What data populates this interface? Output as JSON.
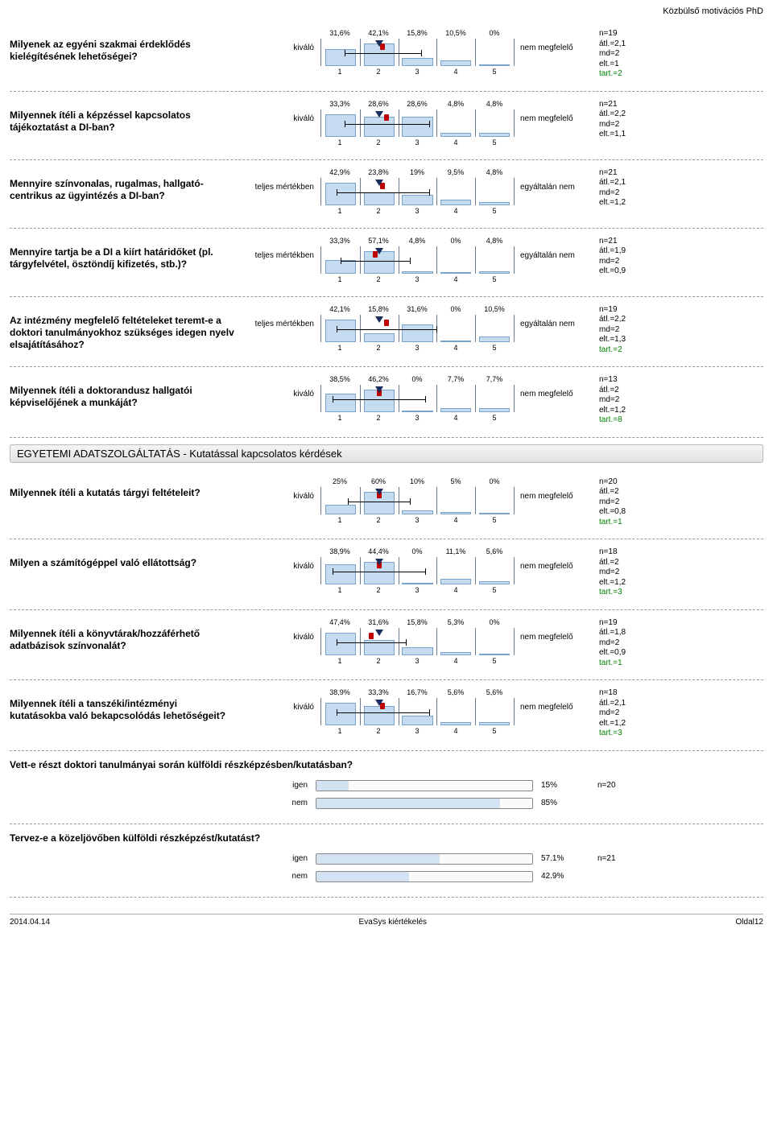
{
  "page_title_right": "Közbülső motivációs PhD",
  "section_heading": "EGYETEMI ADATSZOLGÁLTATÁS - Kutatással kapcsolatos kérdések",
  "axis_labels": [
    "1",
    "2",
    "3",
    "4",
    "5"
  ],
  "chart_colors": {
    "bar_fill": "#c5dbef",
    "bar_border": "#7aa3c9",
    "grid": "#6b7b8c",
    "mean": "#c00000",
    "median": "#1a2d5c",
    "tart": "#008000"
  },
  "questions": [
    {
      "text": "Milyenek az egyéni szakmai érdeklődés kielégítésének lehetőségei?",
      "left": "kiváló",
      "right": "nem megfelelő",
      "percents": [
        "31,6%",
        "42,1%",
        "15,8%",
        "10,5%",
        "0%"
      ],
      "values": [
        31.6,
        42.1,
        15.8,
        10.5,
        0
      ],
      "mean": 2.1,
      "median": 2,
      "elt": 1,
      "n": 19,
      "tart": 2,
      "stats": [
        "n=19",
        "átl.=2,1",
        "md=2",
        "elt.=1",
        "tart.=2"
      ]
    },
    {
      "text": "Milyennek ítéli a képzéssel kapcsolatos tájékoztatást a DI-ban?",
      "left": "kiváló",
      "right": "nem megfelelő",
      "percents": [
        "33,3%",
        "28,6%",
        "28,6%",
        "4,8%",
        "4,8%"
      ],
      "values": [
        33.3,
        28.6,
        28.6,
        4.8,
        4.8
      ],
      "mean": 2.2,
      "median": 2,
      "elt": 1.1,
      "n": 21,
      "stats": [
        "n=21",
        "átl.=2,2",
        "md=2",
        "elt.=1,1"
      ]
    },
    {
      "text": "Mennyire színvonalas, rugalmas, hallgató-centrikus az ügyintézés a DI-ban?",
      "left": "teljes mértékben",
      "right": "egyáltalán nem",
      "percents": [
        "42,9%",
        "23,8%",
        "19%",
        "9,5%",
        "4,8%"
      ],
      "values": [
        42.9,
        23.8,
        19,
        9.5,
        4.8
      ],
      "mean": 2.1,
      "median": 2,
      "elt": 1.2,
      "n": 21,
      "stats": [
        "n=21",
        "átl.=2,1",
        "md=2",
        "elt.=1,2"
      ]
    },
    {
      "text": "Mennyire tartja be a DI a kiírt határidőket (pl. tárgyfelvétel, ösztöndíj kifizetés, stb.)?",
      "left": "teljes mértékben",
      "right": "egyáltalán nem",
      "percents": [
        "33,3%",
        "57,1%",
        "4,8%",
        "0%",
        "4,8%"
      ],
      "values": [
        33.3,
        57.1,
        4.8,
        0,
        4.8
      ],
      "mean": 1.9,
      "median": 2,
      "elt": 0.9,
      "n": 21,
      "stats": [
        "n=21",
        "átl.=1,9",
        "md=2",
        "elt.=0,9"
      ]
    },
    {
      "text": "Az intézmény megfelelő feltételeket teremt-e a doktori tanulmányokhoz szükséges idegen nyelv elsajátításához?",
      "left": "teljes mértékben",
      "right": "egyáltalán nem",
      "percents": [
        "42,1%",
        "15,8%",
        "31,6%",
        "0%",
        "10,5%"
      ],
      "values": [
        42.1,
        15.8,
        31.6,
        0,
        10.5
      ],
      "mean": 2.2,
      "median": 2,
      "elt": 1.3,
      "n": 19,
      "tart": 2,
      "stats": [
        "n=19",
        "átl.=2,2",
        "md=2",
        "elt.=1,3",
        "tart.=2"
      ]
    },
    {
      "text": "Milyennek ítéli a doktorandusz hallgatói képviselőjének a munkáját?",
      "left": "kiváló",
      "right": "nem megfelelő",
      "percents": [
        "38,5%",
        "46,2%",
        "0%",
        "7,7%",
        "7,7%"
      ],
      "values": [
        38.5,
        46.2,
        0,
        7.7,
        7.7
      ],
      "mean": 2.0,
      "median": 2,
      "elt": 1.2,
      "n": 13,
      "tart": 8,
      "stats": [
        "n=13",
        "átl.=2",
        "md=2",
        "elt.=1,2",
        "tart.=8"
      ]
    }
  ],
  "questions2": [
    {
      "text": "Milyennek ítéli a kutatás tárgyi feltételeit?",
      "left": "kiváló",
      "right": "nem megfelelő",
      "percents": [
        "25%",
        "60%",
        "10%",
        "5%",
        "0%"
      ],
      "values": [
        25,
        60,
        10,
        5,
        0
      ],
      "mean": 2.0,
      "median": 2,
      "elt": 0.8,
      "n": 20,
      "tart": 1,
      "stats": [
        "n=20",
        "átl.=2",
        "md=2",
        "elt.=0,8",
        "tart.=1"
      ]
    },
    {
      "text": "Milyen a számítógéppel való ellátottság?",
      "left": "kiváló",
      "right": "nem megfelelő",
      "percents": [
        "38,9%",
        "44,4%",
        "0%",
        "11,1%",
        "5,6%"
      ],
      "values": [
        38.9,
        44.4,
        0,
        11.1,
        5.6
      ],
      "mean": 2.0,
      "median": 2,
      "elt": 1.2,
      "n": 18,
      "tart": 3,
      "stats": [
        "n=18",
        "átl.=2",
        "md=2",
        "elt.=1,2",
        "tart.=3"
      ]
    },
    {
      "text": "Milyennek ítéli a könyvtárak/hozzáférhető adatbázisok színvonalát?",
      "left": "kiváló",
      "right": "nem megfelelő",
      "percents": [
        "47,4%",
        "31,6%",
        "15,8%",
        "5,3%",
        "0%"
      ],
      "values": [
        47.4,
        31.6,
        15.8,
        5.3,
        0
      ],
      "mean": 1.8,
      "median": 2,
      "elt": 0.9,
      "n": 19,
      "tart": 1,
      "stats": [
        "n=19",
        "átl.=1,8",
        "md=2",
        "elt.=0,9",
        "tart.=1"
      ]
    },
    {
      "text": "Milyennek ítéli a tanszéki/intézményi kutatásokba való bekapcsolódás lehetőségeit?",
      "left": "kiváló",
      "right": "nem megfelelő",
      "percents": [
        "38,9%",
        "33,3%",
        "16,7%",
        "5,6%",
        "5,6%"
      ],
      "values": [
        38.9,
        33.3,
        16.7,
        5.6,
        5.6
      ],
      "mean": 2.1,
      "median": 2,
      "elt": 1.2,
      "n": 18,
      "tart": 3,
      "stats": [
        "n=18",
        "átl.=2,1",
        "md=2",
        "elt.=1,2",
        "tart.=3"
      ]
    }
  ],
  "yn_questions": [
    {
      "text": "Vett-e részt doktori tanulmányai során külföldi részképzésben/kutatásban?",
      "options": [
        {
          "label": "igen",
          "pct": 15,
          "pct_label": "15%"
        },
        {
          "label": "nem",
          "pct": 85,
          "pct_label": "85%"
        }
      ],
      "n": "n=20"
    },
    {
      "text": "Tervez-e a közeljövőben külföldi részképzést/kutatást?",
      "options": [
        {
          "label": "igen",
          "pct": 57.1,
          "pct_label": "57.1%"
        },
        {
          "label": "nem",
          "pct": 42.9,
          "pct_label": "42.9%"
        }
      ],
      "n": "n=21"
    }
  ],
  "footer": {
    "left": "2014.04.14",
    "center": "EvaSys kiértékelés",
    "right": "Oldal12"
  }
}
